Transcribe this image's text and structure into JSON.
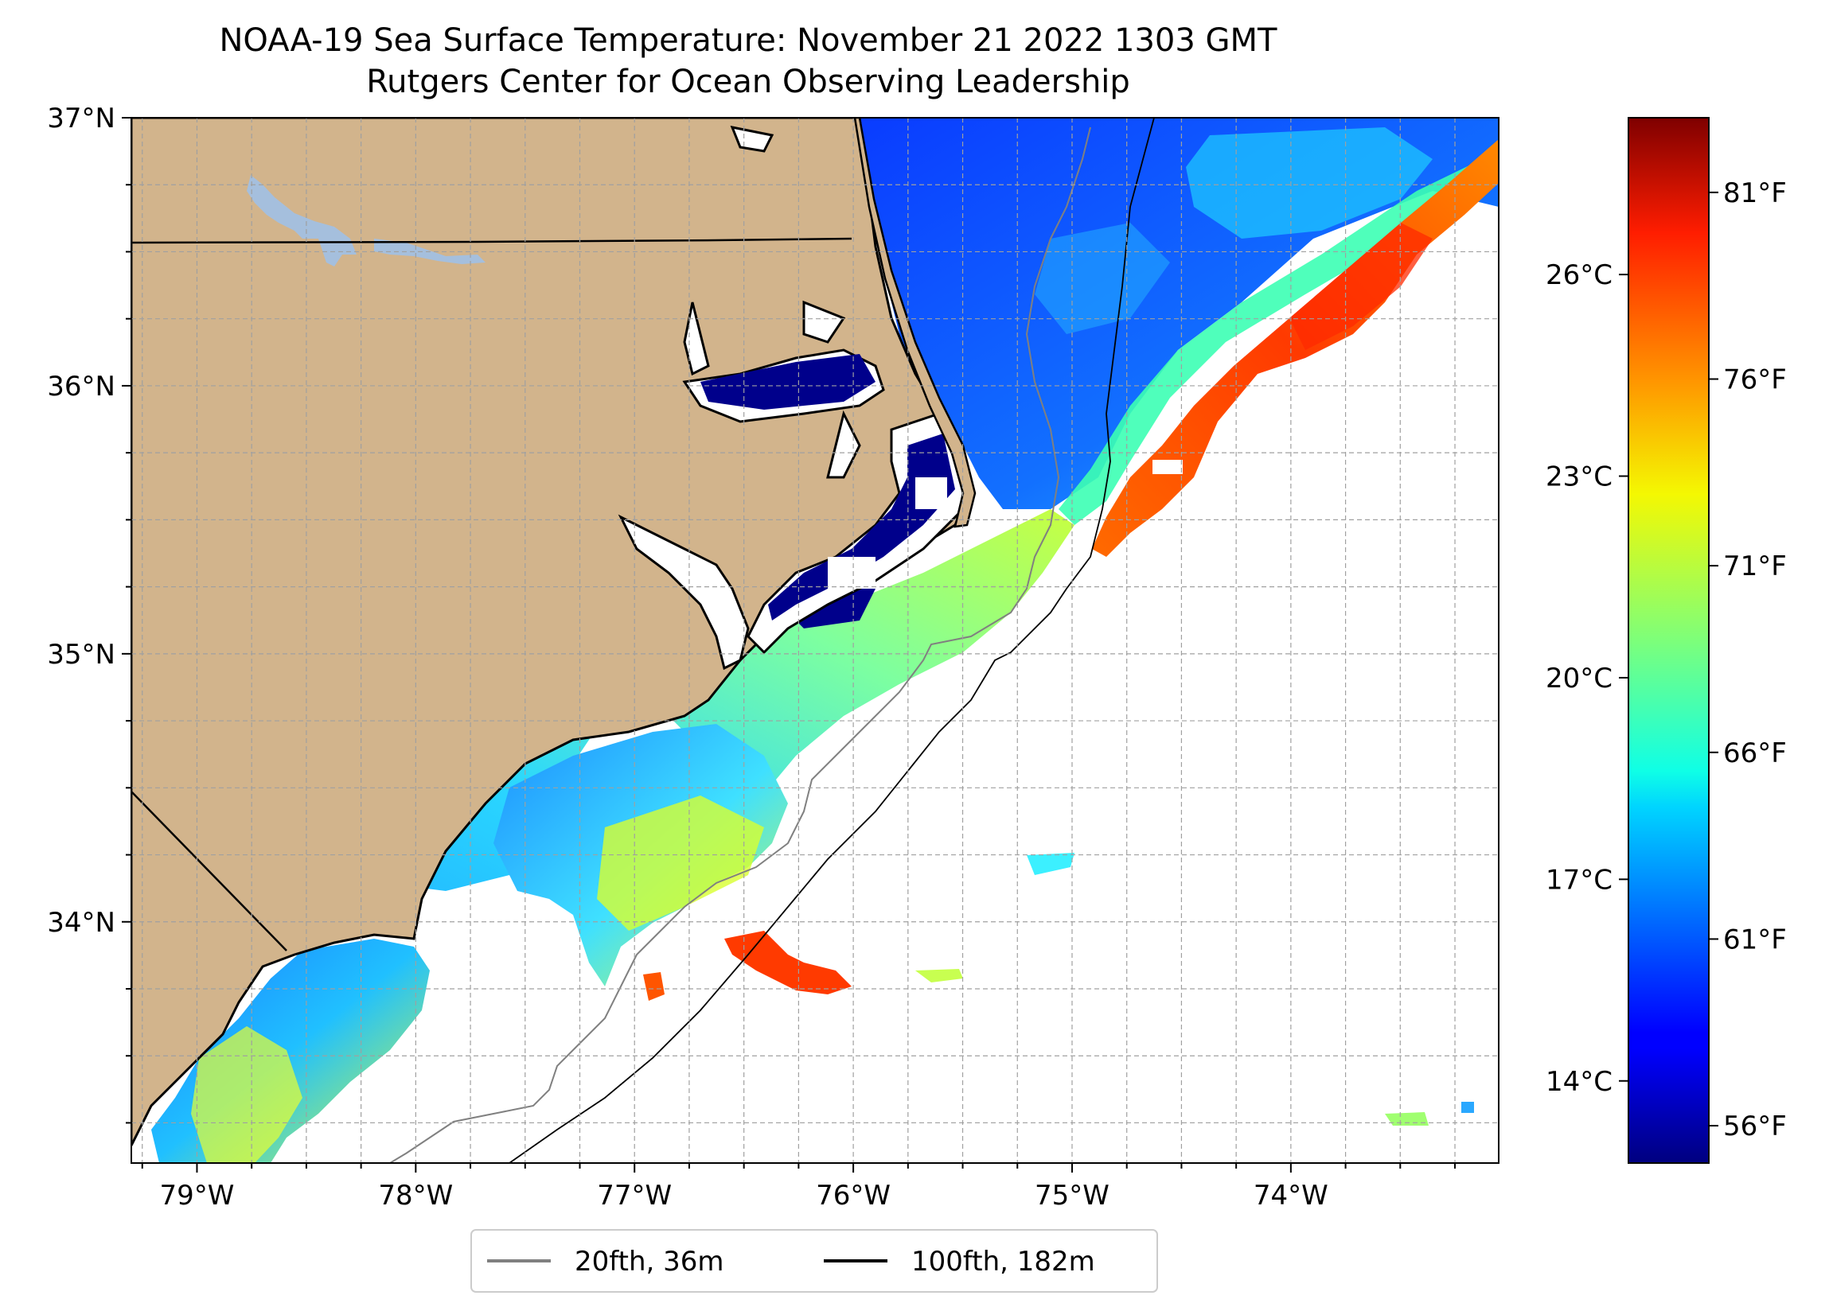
{
  "title": "NOAA-19 Sea Surface Temperature: November 21 2022 1303 GMT",
  "subtitle": "Rutgers Center for Ocean Observing Leadership",
  "map": {
    "lon_range": [
      -79.3,
      -73.05
    ],
    "lat_range": [
      33.1,
      37.0
    ],
    "lon_ticks": [
      {
        "value": -79,
        "label": "79°W"
      },
      {
        "value": -78,
        "label": "78°W"
      },
      {
        "value": -77,
        "label": "77°W"
      },
      {
        "value": -76,
        "label": "76°W"
      },
      {
        "value": -75,
        "label": "75°W"
      },
      {
        "value": -74,
        "label": "74°W"
      }
    ],
    "lat_ticks": [
      {
        "value": 37,
        "label": "37°N"
      },
      {
        "value": 36,
        "label": "36°N"
      },
      {
        "value": 35,
        "label": "35°N"
      },
      {
        "value": 34,
        "label": "34°N"
      }
    ],
    "grid_step_deg": 0.25,
    "grid": true,
    "land_color": "#d2b48c",
    "lake_color": "#a5bfdd"
  },
  "legend": {
    "position": "bottom-center",
    "items": [
      {
        "label": "20fth, 36m",
        "color": "#808080"
      },
      {
        "label": "100fth, 182m",
        "color": "#000000"
      }
    ]
  },
  "colorbar": {
    "colormap": "jet",
    "range_f": [
      55,
      83
    ],
    "celsius_ticks": [
      {
        "value": 26,
        "label": "26°C"
      },
      {
        "value": 23,
        "label": "23°C"
      },
      {
        "value": 20,
        "label": "20°C"
      },
      {
        "value": 17,
        "label": "17°C"
      },
      {
        "value": 14,
        "label": "14°C"
      }
    ],
    "fahrenheit_ticks": [
      {
        "value": 81,
        "label": "81°F"
      },
      {
        "value": 76,
        "label": "76°F"
      },
      {
        "value": 71,
        "label": "71°F"
      },
      {
        "value": 66,
        "label": "66°F"
      },
      {
        "value": 61,
        "label": "61°F"
      },
      {
        "value": 56,
        "label": "56°F"
      }
    ]
  }
}
